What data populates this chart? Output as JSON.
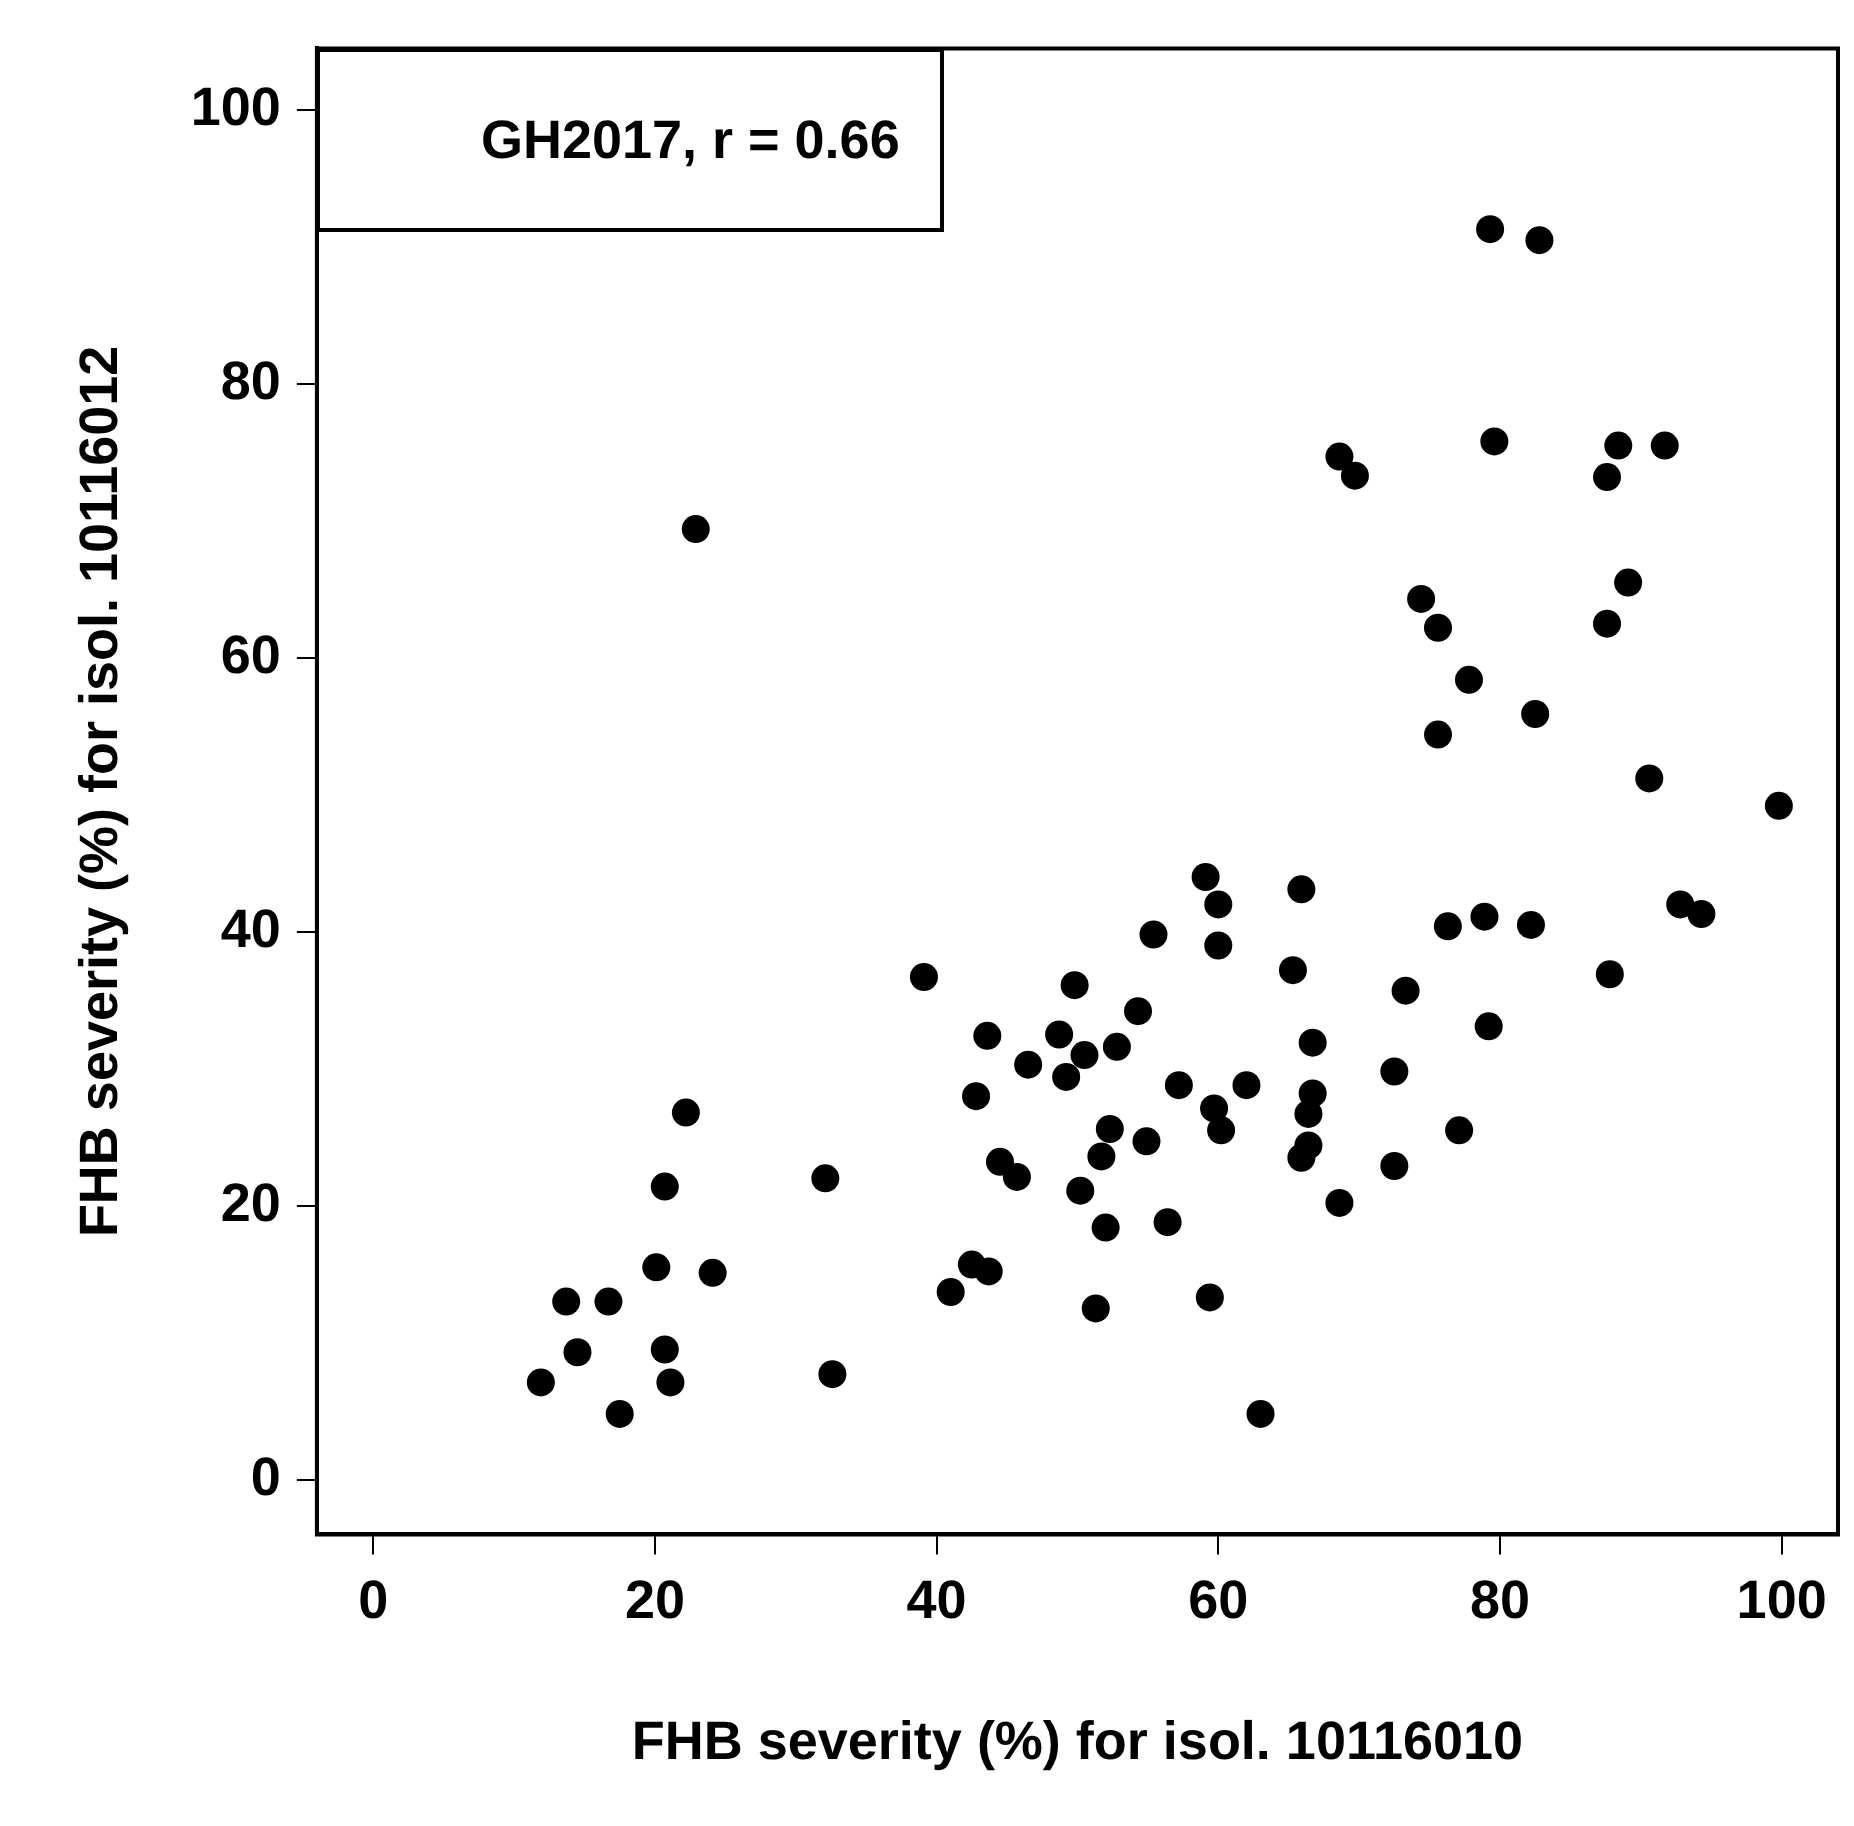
{
  "chart_data": {
    "type": "scatter",
    "xlabel": "FHB severity (%) for isol. 10116010",
    "ylabel": "FHB severity (%) for isol. 10116012",
    "annotations": [
      "GH2017, r = 0.66"
    ],
    "xlim": [
      -4,
      104
    ],
    "ylim": [
      -4,
      104.5
    ],
    "xticks": [
      0,
      20,
      40,
      60,
      80,
      100
    ],
    "yticks": [
      0,
      20,
      40,
      60,
      80,
      100
    ],
    "grid": false,
    "legend": false,
    "marker": "circle",
    "series": [
      {
        "color": "#000000",
        "x": [
          11.9,
          13.7,
          14.5,
          16.7,
          17.5,
          20.1,
          20.7,
          20.7,
          21.1,
          22.2,
          24.1,
          22.9,
          32.1,
          32.6,
          39.1,
          43.6,
          42.8,
          46.5,
          49.8,
          48.7,
          49.2,
          50.5,
          52.8,
          54.3,
          55.4,
          59.1,
          60.0,
          60.0,
          65.9,
          65.3,
          57.2,
          62.0,
          59.7,
          60.2,
          66.7,
          66.7,
          66.4,
          66.4,
          65.9,
          52.3,
          51.7,
          54.9,
          44.5,
          45.7,
          50.2,
          52.0,
          56.4,
          42.5,
          43.7,
          41.0,
          51.3,
          59.4,
          63.0,
          68.6,
          72.5,
          72.5,
          73.3,
          76.3,
          78.9,
          82.2,
          79.2,
          77.1,
          87.8,
          92.8,
          94.3,
          79.3,
          82.8,
          68.6,
          69.7,
          79.6,
          88.4,
          91.7,
          87.6,
          74.4,
          75.6,
          89.1,
          87.6,
          77.8,
          82.5,
          75.6,
          90.6,
          99.8
        ],
        "values": [
          7.1,
          13.0,
          9.3,
          13.0,
          4.8,
          15.5,
          9.5,
          21.4,
          7.1,
          26.8,
          15.1,
          69.4,
          22.0,
          7.7,
          36.7,
          32.4,
          28.0,
          30.3,
          36.1,
          32.5,
          29.4,
          31.0,
          31.6,
          34.2,
          39.8,
          44.0,
          42.0,
          39.0,
          43.1,
          37.2,
          28.8,
          28.8,
          27.1,
          25.5,
          31.9,
          28.2,
          26.7,
          24.4,
          23.5,
          25.6,
          23.6,
          24.7,
          23.2,
          22.1,
          21.1,
          18.4,
          18.8,
          15.7,
          15.2,
          13.7,
          12.5,
          13.3,
          4.8,
          20.2,
          22.9,
          29.8,
          35.7,
          40.4,
          41.1,
          40.5,
          33.1,
          25.5,
          36.9,
          42.0,
          41.3,
          91.3,
          90.5,
          74.7,
          73.3,
          75.8,
          75.5,
          75.5,
          73.2,
          64.3,
          62.2,
          65.5,
          62.5,
          58.4,
          55.9,
          54.4,
          51.2,
          49.2
        ]
      }
    ]
  }
}
